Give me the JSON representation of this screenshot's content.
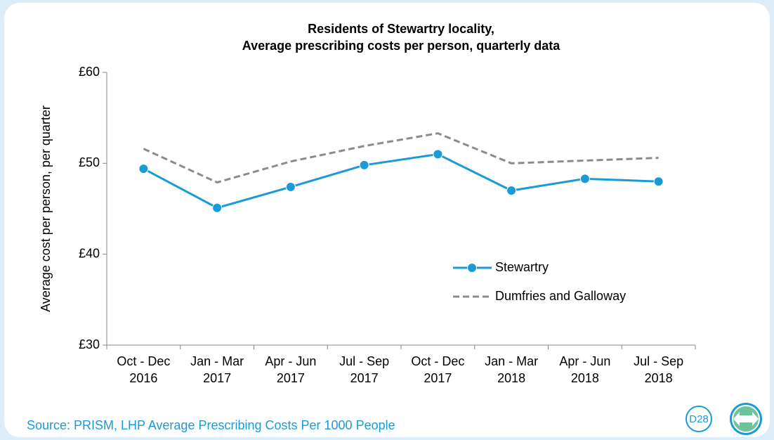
{
  "chart_data": {
    "type": "line",
    "title": "Residents of Stewartry locality,",
    "subtitle": "Average prescribing costs per person, quarterly data",
    "y_label": "Average cost per person, per quarter",
    "categories": [
      [
        "Oct - Dec",
        "2016"
      ],
      [
        "Jan - Mar",
        "2017"
      ],
      [
        "Apr - Jun",
        "2017"
      ],
      [
        "Jul - Sep",
        "2017"
      ],
      [
        "Oct - Dec",
        "2017"
      ],
      [
        "Jan - Mar",
        "2018"
      ],
      [
        "Apr - Jun",
        "2018"
      ],
      [
        "Jul - Sep",
        "2018"
      ]
    ],
    "series": [
      {
        "name": "Stewartry",
        "color": "#1a9bd7",
        "dashed": false,
        "markers": true,
        "values": [
          49.4,
          45.1,
          47.4,
          49.8,
          51.0,
          47.0,
          48.3,
          48.0
        ]
      },
      {
        "name": "Dumfries and Galloway",
        "color": "#8c8c8c",
        "dashed": true,
        "markers": false,
        "values": [
          51.6,
          47.9,
          50.2,
          51.9,
          53.3,
          50.0,
          50.3,
          50.6
        ]
      }
    ],
    "ylim": [
      30,
      60
    ],
    "yticks": [
      {
        "value": 30,
        "label": "£30"
      },
      {
        "value": 40,
        "label": "£40"
      },
      {
        "value": 50,
        "label": "£50"
      },
      {
        "value": 60,
        "label": "£60"
      }
    ],
    "grid": false
  },
  "source": "Source: PRISM, LHP  Average Prescribing Costs Per 1000 People",
  "badge": "D28"
}
